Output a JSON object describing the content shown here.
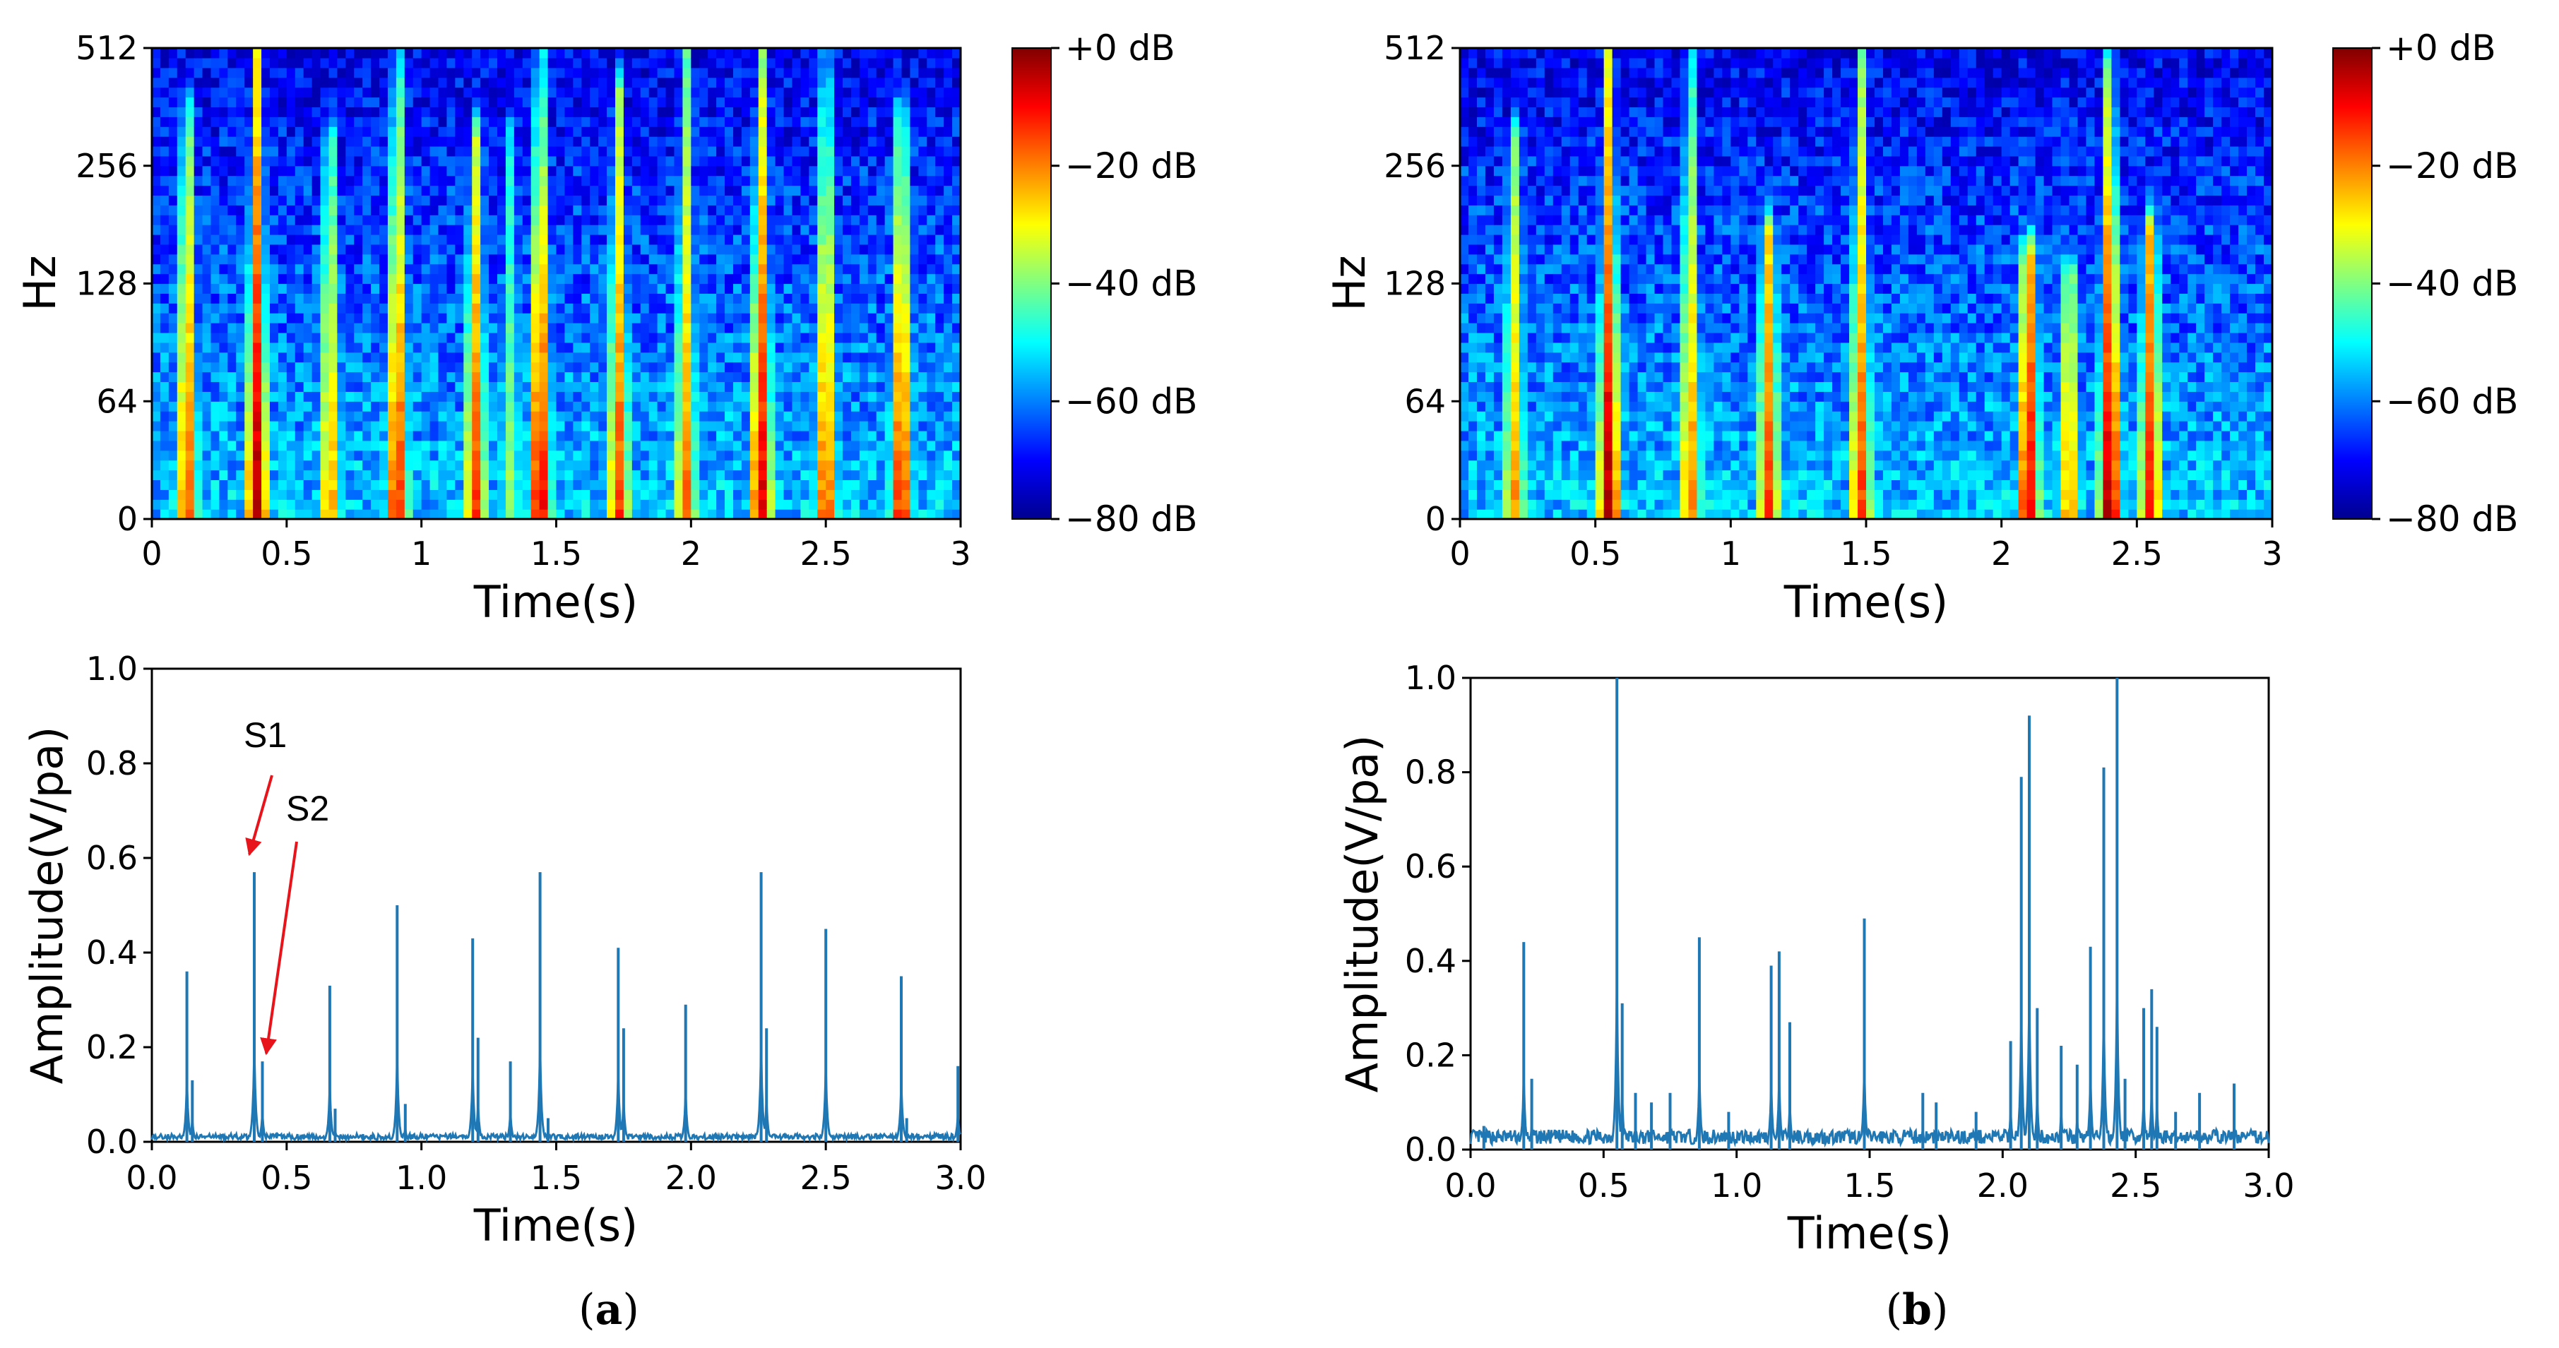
{
  "figure": {
    "captions": [
      {
        "open": "(",
        "letter": "a",
        "close": ")"
      },
      {
        "open": "(",
        "letter": "b",
        "close": ")"
      }
    ]
  },
  "colormap": {
    "stops": [
      "#00008f",
      "#0000ff",
      "#0080ff",
      "#00ffff",
      "#80ff80",
      "#ffff00",
      "#ff8000",
      "#ff0000",
      "#800000"
    ]
  },
  "line_color": "#1f77b4",
  "arrow_color": "#e8141b",
  "chart_data": [
    {
      "id": "a-spectrogram",
      "type": "heatmap",
      "xlabel": "Time(s)",
      "ylabel": "Hz",
      "xlim": [
        0,
        3
      ],
      "xticks": [
        "0",
        "0.5",
        "1",
        "1.5",
        "2",
        "2.5",
        "3"
      ],
      "yticks": [
        "0",
        "64",
        "128",
        "256",
        "512"
      ],
      "colorbar": {
        "ticks": [
          "+0 dB",
          "−20 dB",
          "−40 dB",
          "−60 dB",
          "−80 dB"
        ],
        "range_db": [
          -80,
          0
        ]
      },
      "events": [
        {
          "t": 0.13,
          "s": 0.85,
          "h": 0.85
        },
        {
          "t": 0.39,
          "s": 1.0,
          "h": 1.0
        },
        {
          "t": 0.66,
          "s": 0.75,
          "h": 0.8
        },
        {
          "t": 0.91,
          "s": 0.9,
          "h": 1.0
        },
        {
          "t": 1.2,
          "s": 0.85,
          "h": 0.8
        },
        {
          "t": 1.33,
          "s": 0.55,
          "h": 0.8
        },
        {
          "t": 1.44,
          "s": 0.95,
          "h": 1.0
        },
        {
          "t": 1.73,
          "s": 0.85,
          "h": 0.9
        },
        {
          "t": 1.98,
          "s": 0.8,
          "h": 1.0
        },
        {
          "t": 2.26,
          "s": 0.95,
          "h": 1.0
        },
        {
          "t": 2.5,
          "s": 0.85,
          "h": 1.0
        },
        {
          "t": 2.78,
          "s": 0.9,
          "h": 0.85
        }
      ]
    },
    {
      "id": "b-spectrogram",
      "type": "heatmap",
      "xlabel": "Time(s)",
      "ylabel": "Hz",
      "xlim": [
        0,
        3
      ],
      "xticks": [
        "0",
        "0.5",
        "1",
        "1.5",
        "2",
        "2.5",
        "3"
      ],
      "yticks": [
        "0",
        "64",
        "128",
        "256",
        "512"
      ],
      "colorbar": {
        "ticks": [
          "+0 dB",
          "−20 dB",
          "−40 dB",
          "−60 dB",
          "−80 dB"
        ],
        "range_db": [
          -80,
          0
        ]
      },
      "events": [
        {
          "t": 0.2,
          "s": 0.75,
          "h": 0.8
        },
        {
          "t": 0.55,
          "s": 1.0,
          "h": 1.0
        },
        {
          "t": 0.85,
          "s": 0.8,
          "h": 1.0
        },
        {
          "t": 1.14,
          "s": 0.85,
          "h": 0.6
        },
        {
          "t": 1.48,
          "s": 0.85,
          "h": 1.0
        },
        {
          "t": 2.1,
          "s": 0.95,
          "h": 0.55
        },
        {
          "t": 2.25,
          "s": 0.75,
          "h": 0.5
        },
        {
          "t": 2.4,
          "s": 1.0,
          "h": 0.95
        },
        {
          "t": 2.55,
          "s": 0.9,
          "h": 0.6
        }
      ]
    },
    {
      "id": "a-waveform",
      "type": "line",
      "xlabel": "Time(s)",
      "ylabel": "Amplitude(V/pa)",
      "xlim": [
        0,
        3
      ],
      "ylim": [
        0,
        1
      ],
      "xticks": [
        "0.0",
        "0.5",
        "1.0",
        "1.5",
        "2.0",
        "2.5",
        "3.0"
      ],
      "yticks": [
        "0.0",
        "0.2",
        "0.4",
        "0.6",
        "0.8",
        "1.0"
      ],
      "noise": 0.012,
      "peaks": [
        {
          "t": 0.13,
          "v": 0.36
        },
        {
          "t": 0.15,
          "v": 0.13
        },
        {
          "t": 0.38,
          "v": 0.57
        },
        {
          "t": 0.41,
          "v": 0.17
        },
        {
          "t": 0.66,
          "v": 0.33
        },
        {
          "t": 0.68,
          "v": 0.07
        },
        {
          "t": 0.91,
          "v": 0.5
        },
        {
          "t": 0.94,
          "v": 0.08
        },
        {
          "t": 1.19,
          "v": 0.43
        },
        {
          "t": 1.21,
          "v": 0.22
        },
        {
          "t": 1.33,
          "v": 0.17
        },
        {
          "t": 1.44,
          "v": 0.57
        },
        {
          "t": 1.47,
          "v": 0.05
        },
        {
          "t": 1.73,
          "v": 0.41
        },
        {
          "t": 1.75,
          "v": 0.24
        },
        {
          "t": 1.98,
          "v": 0.29
        },
        {
          "t": 2.26,
          "v": 0.57
        },
        {
          "t": 2.28,
          "v": 0.24
        },
        {
          "t": 2.5,
          "v": 0.45
        },
        {
          "t": 2.78,
          "v": 0.35
        },
        {
          "t": 2.8,
          "v": 0.05
        },
        {
          "t": 2.99,
          "v": 0.16
        }
      ],
      "annotations": [
        {
          "label": "S1",
          "target_t": 0.38,
          "target_v": 0.6
        },
        {
          "label": "S2",
          "target_t": 0.41,
          "target_v": 0.18
        }
      ]
    },
    {
      "id": "b-waveform",
      "type": "line",
      "xlabel": "Time(s)",
      "ylabel": "Amplitude(V/pa)",
      "xlim": [
        0,
        3
      ],
      "ylim": [
        0,
        1
      ],
      "xticks": [
        "0.0",
        "0.5",
        "1.0",
        "1.5",
        "2.0",
        "2.5",
        "3.0"
      ],
      "yticks": [
        "0.0",
        "0.2",
        "0.4",
        "0.6",
        "0.8",
        "1.0"
      ],
      "noise": 0.03,
      "peaks": [
        {
          "t": 0.05,
          "v": 0.05
        },
        {
          "t": 0.2,
          "v": 0.44
        },
        {
          "t": 0.23,
          "v": 0.15
        },
        {
          "t": 0.55,
          "v": 1.0
        },
        {
          "t": 0.57,
          "v": 0.31
        },
        {
          "t": 0.62,
          "v": 0.12
        },
        {
          "t": 0.68,
          "v": 0.1
        },
        {
          "t": 0.75,
          "v": 0.12
        },
        {
          "t": 0.86,
          "v": 0.45
        },
        {
          "t": 0.97,
          "v": 0.08
        },
        {
          "t": 1.13,
          "v": 0.39
        },
        {
          "t": 1.16,
          "v": 0.42
        },
        {
          "t": 1.2,
          "v": 0.27
        },
        {
          "t": 1.48,
          "v": 0.49
        },
        {
          "t": 1.7,
          "v": 0.12
        },
        {
          "t": 1.75,
          "v": 0.1
        },
        {
          "t": 1.9,
          "v": 0.08
        },
        {
          "t": 2.03,
          "v": 0.23
        },
        {
          "t": 2.07,
          "v": 0.79
        },
        {
          "t": 2.1,
          "v": 0.92
        },
        {
          "t": 2.13,
          "v": 0.3
        },
        {
          "t": 2.22,
          "v": 0.22
        },
        {
          "t": 2.28,
          "v": 0.18
        },
        {
          "t": 2.33,
          "v": 0.43
        },
        {
          "t": 2.38,
          "v": 0.81
        },
        {
          "t": 2.43,
          "v": 1.0
        },
        {
          "t": 2.46,
          "v": 0.15
        },
        {
          "t": 2.53,
          "v": 0.3
        },
        {
          "t": 2.56,
          "v": 0.34
        },
        {
          "t": 2.58,
          "v": 0.26
        },
        {
          "t": 2.65,
          "v": 0.08
        },
        {
          "t": 2.74,
          "v": 0.12
        },
        {
          "t": 2.87,
          "v": 0.14
        }
      ]
    }
  ]
}
